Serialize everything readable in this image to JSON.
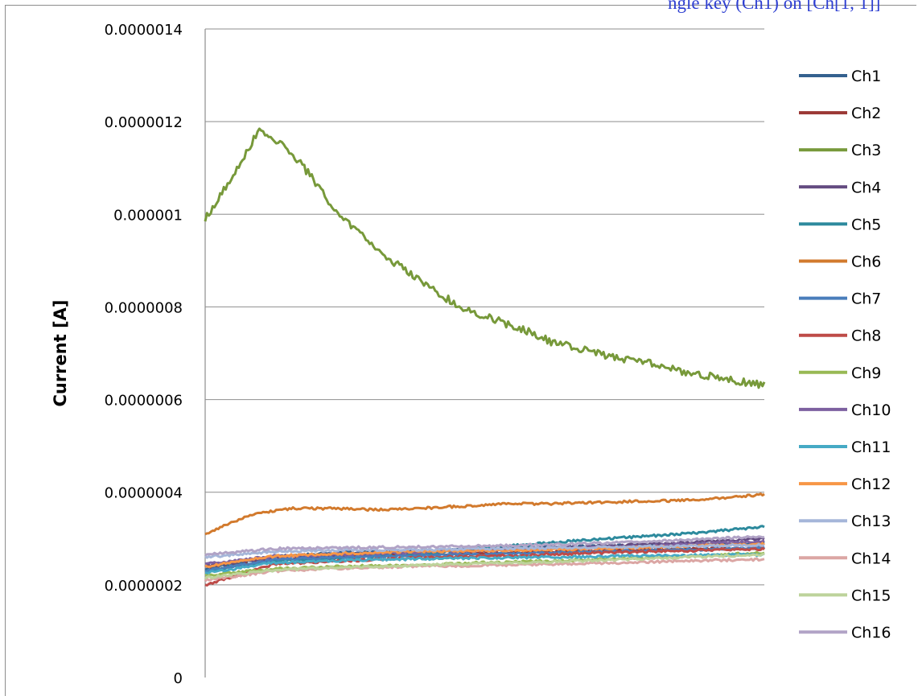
{
  "page": {
    "top_caption": "ngle key (Ch1) on [Ch[1, 1]]"
  },
  "chart_data": {
    "type": "line",
    "title": "",
    "xlabel": "",
    "ylabel": "Current [A]",
    "ylim": [
      0,
      1.4e-06
    ],
    "y_ticks": [
      "0",
      "0.0000002",
      "0.0000004",
      "0.0000006",
      "0.0000008",
      "0.000001",
      "0.0000012",
      "0.0000014"
    ],
    "grid": "horizontal",
    "legend_position": "right",
    "x_points": 300,
    "series": [
      {
        "name": "Ch1",
        "color": "#34618f",
        "values": [
          2.35e-07,
          2.62e-07,
          2.7e-07,
          2.74e-07,
          2.78e-07,
          2.82e-07,
          2.85e-07,
          2.88e-07,
          2.9e-07
        ]
      },
      {
        "name": "Ch2",
        "color": "#9b3835",
        "values": [
          2.3e-07,
          2.55e-07,
          2.62e-07,
          2.65e-07,
          2.68e-07,
          2.72e-07,
          2.75e-07,
          2.78e-07,
          2.8e-07
        ]
      },
      {
        "name": "Ch3",
        "color": "#77993a",
        "values": [
          9.9e-07,
          1.08e-06,
          1.18e-06,
          1.15e-06,
          1.08e-06,
          1e-06,
          9.5e-07,
          9e-07,
          8.6e-07,
          8.2e-07,
          7.9e-07,
          7.7e-07,
          7.5e-07,
          7.25e-07,
          7.1e-07,
          6.95e-07,
          6.85e-07,
          6.75e-07,
          6.6e-07,
          6.5e-07,
          6.4e-07,
          6.3e-07
        ]
      },
      {
        "name": "Ch4",
        "color": "#634a80",
        "values": [
          2.4e-07,
          2.6e-07,
          2.65e-07,
          2.7e-07,
          2.75e-07,
          2.8e-07,
          2.86e-07,
          2.92e-07,
          3e-07
        ]
      },
      {
        "name": "Ch5",
        "color": "#2d8a9d",
        "values": [
          2.3e-07,
          2.52e-07,
          2.58e-07,
          2.65e-07,
          2.8e-07,
          2.92e-07,
          3.02e-07,
          3.12e-07,
          3.25e-07
        ]
      },
      {
        "name": "Ch6",
        "color": "#d27a2d",
        "values": [
          3.1e-07,
          3.5e-07,
          3.65e-07,
          3.65e-07,
          3.62e-07,
          3.65e-07,
          3.7e-07,
          3.75e-07,
          3.75e-07,
          3.78e-07,
          3.8e-07,
          3.82e-07,
          3.87e-07,
          3.95e-07
        ]
      },
      {
        "name": "Ch7",
        "color": "#4a7ebb",
        "values": [
          2.3e-07,
          2.55e-07,
          2.6e-07,
          2.63e-07,
          2.66e-07,
          2.7e-07,
          2.73e-07,
          2.76e-07,
          2.8e-07
        ]
      },
      {
        "name": "Ch8",
        "color": "#be4b48",
        "values": [
          2e-07,
          2.45e-07,
          2.52e-07,
          2.58e-07,
          2.62e-07,
          2.66e-07,
          2.7e-07,
          2.74e-07,
          2.78e-07
        ]
      },
      {
        "name": "Ch9",
        "color": "#98b954",
        "values": [
          2.2e-07,
          2.35e-07,
          2.4e-07,
          2.42e-07,
          2.48e-07,
          2.52e-07,
          2.57e-07,
          2.62e-07,
          2.7e-07
        ]
      },
      {
        "name": "Ch10",
        "color": "#7d60a0",
        "values": [
          2.45e-07,
          2.62e-07,
          2.66e-07,
          2.7e-07,
          2.74e-07,
          2.78e-07,
          2.82e-07,
          2.88e-07,
          2.95e-07
        ]
      },
      {
        "name": "Ch11",
        "color": "#46aac5",
        "values": [
          2.25e-07,
          2.48e-07,
          2.53e-07,
          2.56e-07,
          2.58e-07,
          2.6e-07,
          2.62e-07,
          2.64e-07,
          2.65e-07
        ]
      },
      {
        "name": "Ch12",
        "color": "#f79646",
        "values": [
          2.4e-07,
          2.62e-07,
          2.68e-07,
          2.72e-07,
          2.74e-07,
          2.76e-07,
          2.8e-07,
          2.84e-07,
          2.88e-07
        ]
      },
      {
        "name": "Ch13",
        "color": "#a5b6d9",
        "values": [
          2.6e-07,
          2.72e-07,
          2.75e-07,
          2.76e-07,
          2.78e-07,
          2.8e-07,
          2.82e-07,
          2.84e-07,
          2.86e-07
        ]
      },
      {
        "name": "Ch14",
        "color": "#dba6a4",
        "values": [
          2.1e-07,
          2.3e-07,
          2.36e-07,
          2.4e-07,
          2.42e-07,
          2.45e-07,
          2.48e-07,
          2.52e-07,
          2.55e-07
        ]
      },
      {
        "name": "Ch15",
        "color": "#bdd39b",
        "values": [
          2.15e-07,
          2.32e-07,
          2.38e-07,
          2.42e-07,
          2.46e-07,
          2.5e-07,
          2.55e-07,
          2.6e-07,
          2.65e-07
        ]
      },
      {
        "name": "Ch16",
        "color": "#b1a3c6",
        "values": [
          2.65e-07,
          2.78e-07,
          2.8e-07,
          2.82e-07,
          2.84e-07,
          2.87e-07,
          2.92e-07,
          2.98e-07,
          3.05e-07
        ]
      }
    ]
  }
}
